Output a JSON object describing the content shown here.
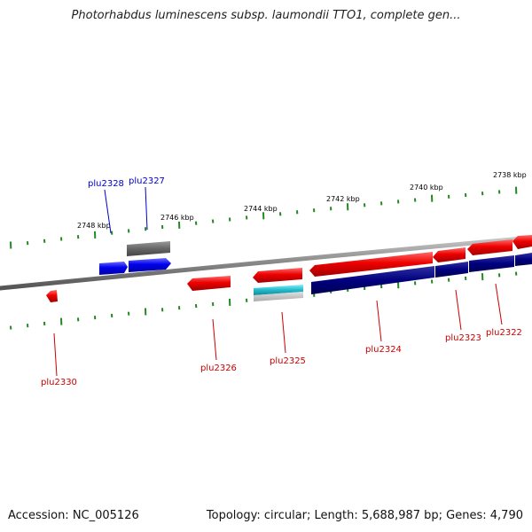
{
  "title": "Photorhabdus luminescens subsp. laumondii TTO1, complete gen...",
  "footer": {
    "accession": "Accession: NC_005126",
    "summary": "Topology: circular; Length: 5,688,987 bp; Genes: 4,790"
  },
  "scale_labels": [
    "2748 kbp",
    "2746 kbp",
    "2744 kbp",
    "2742 kbp",
    "2740 kbp",
    "2738 kbp"
  ],
  "colors": {
    "reverse_gene": "#ee0000",
    "forward_gene": "#0000ee",
    "cds_dark": "#000080",
    "teal": "#22bbcc",
    "gray": "#666666",
    "ticks": "#228822",
    "backbone": "#888888"
  },
  "genes": [
    {
      "label": "plu2328",
      "strand": "forward",
      "color_key": "forward_gene"
    },
    {
      "label": "plu2327",
      "strand": "forward",
      "color_key": "forward_gene"
    },
    {
      "label": "plu2330",
      "strand": "reverse",
      "color_key": "reverse_gene"
    },
    {
      "label": "plu2326",
      "strand": "reverse",
      "color_key": "reverse_gene"
    },
    {
      "label": "plu2325",
      "strand": "reverse",
      "color_key": "reverse_gene"
    },
    {
      "label": "plu2324",
      "strand": "reverse",
      "color_key": "reverse_gene"
    },
    {
      "label": "plu2323",
      "strand": "reverse",
      "color_key": "reverse_gene"
    },
    {
      "label": "plu2322",
      "strand": "reverse",
      "color_key": "reverse_gene"
    }
  ]
}
